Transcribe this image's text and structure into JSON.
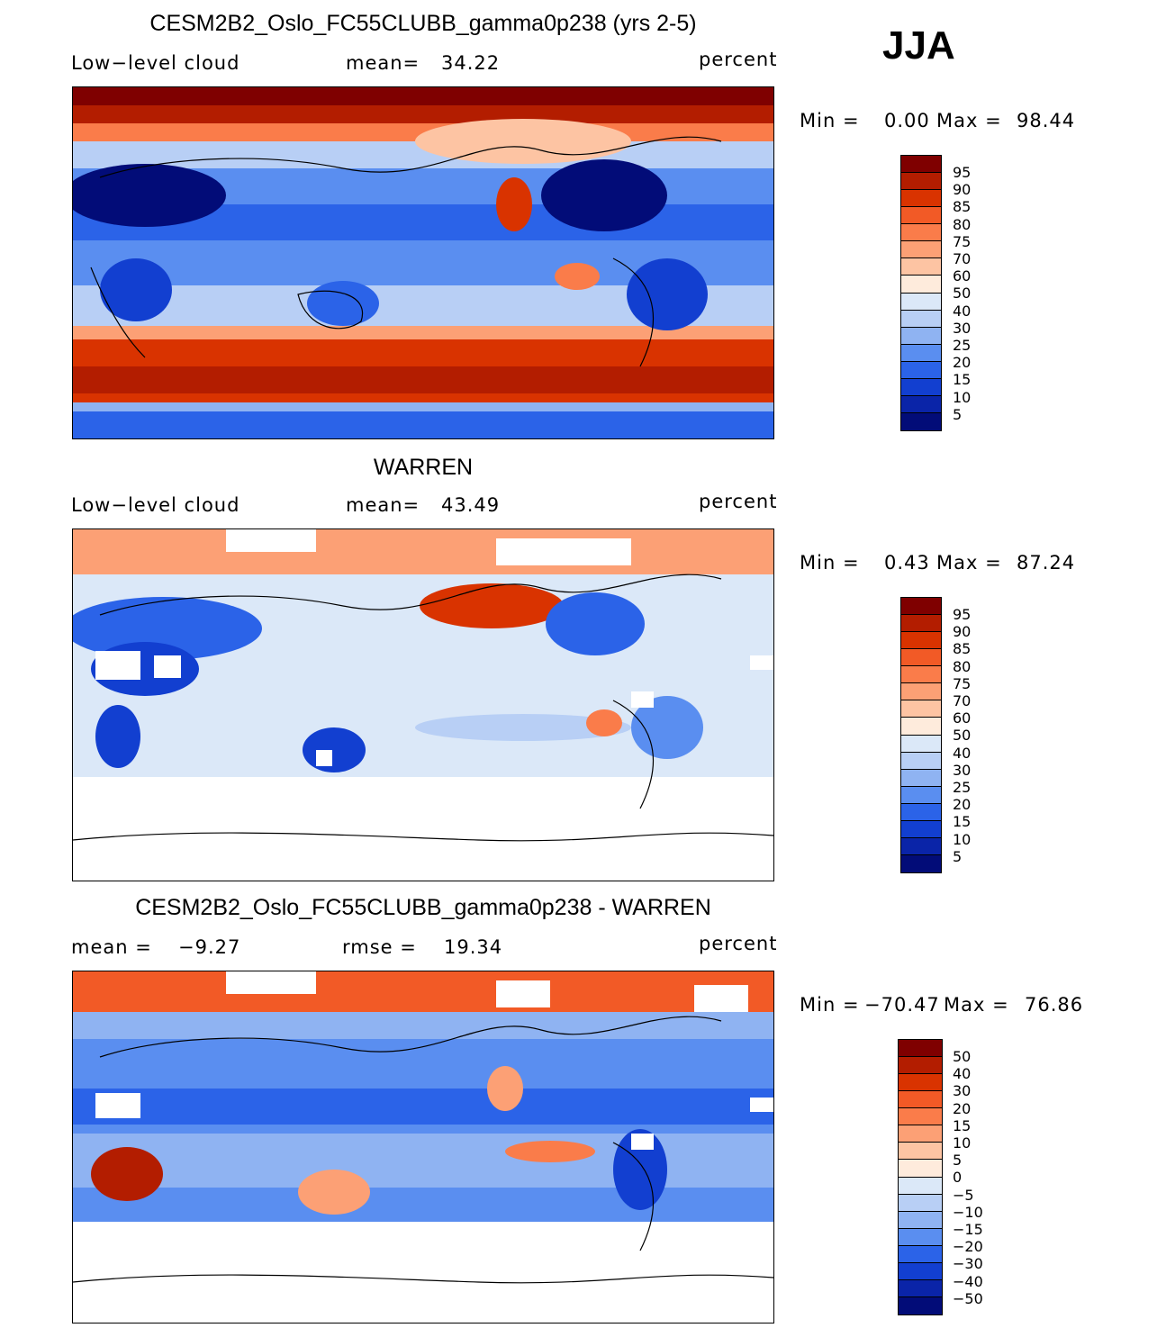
{
  "season": "JJA",
  "units": "percent",
  "panels": [
    {
      "title": "CESM2B2_Oslo_FC55CLUBB_gamma0p238 (yrs 2-5)",
      "left_label": "Low−level cloud",
      "stat_label": "mean=",
      "stat_value": "34.22",
      "units": "percent",
      "min_label": "Min =",
      "min_value": "0.00",
      "max_label": "Max =",
      "max_value": "98.44",
      "legend_ticks": [
        "95",
        "90",
        "85",
        "80",
        "75",
        "70",
        "60",
        "50",
        "40",
        "30",
        "25",
        "20",
        "15",
        "10",
        "5"
      ]
    },
    {
      "title": "WARREN",
      "left_label": "Low−level cloud",
      "stat_label": "mean=",
      "stat_value": "43.49",
      "units": "percent",
      "min_label": "Min =",
      "min_value": "0.43",
      "max_label": "Max =",
      "max_value": "87.24",
      "legend_ticks": [
        "95",
        "90",
        "85",
        "80",
        "75",
        "70",
        "60",
        "50",
        "40",
        "30",
        "25",
        "20",
        "15",
        "10",
        "5"
      ]
    },
    {
      "title": "CESM2B2_Oslo_FC55CLUBB_gamma0p238 - WARREN",
      "left_label": "mean =",
      "left_value": "−9.27",
      "stat_label": "rmse =",
      "stat_value": "19.34",
      "units": "percent",
      "min_label": "Min =",
      "min_value": "−70.47",
      "max_label": "Max =",
      "max_value": "76.86",
      "legend_ticks": [
        "50",
        "40",
        "30",
        "20",
        "15",
        "10",
        "5",
        "0",
        "−5",
        "−10",
        "−15",
        "−20",
        "−30",
        "−40",
        "−50"
      ]
    }
  ],
  "colors": {
    "palette": [
      "#7f0000",
      "#b31d00",
      "#d93300",
      "#f25a26",
      "#fa7c4a",
      "#fca075",
      "#fdc4a3",
      "#feebdc",
      "#dbe8f8",
      "#b8cff5",
      "#8fb3f2",
      "#5a8ef0",
      "#2b63e8",
      "#123fd0",
      "#0a24a8",
      "#020c78"
    ]
  }
}
